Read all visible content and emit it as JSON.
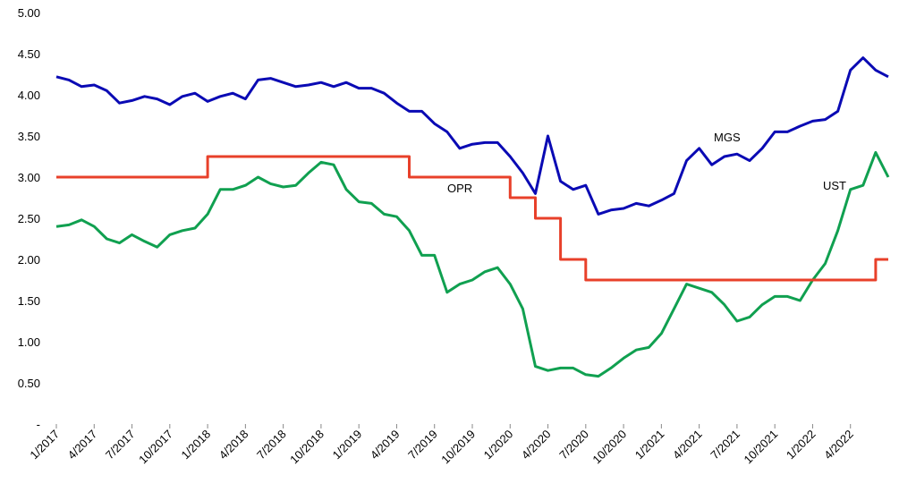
{
  "chart_data": {
    "type": "line",
    "title": "",
    "xlabel": "",
    "ylabel": "",
    "ylim": [
      0,
      5
    ],
    "grid": false,
    "legend": "none",
    "y_ticks": [
      "-",
      "0.50",
      "1.00",
      "1.50",
      "2.00",
      "2.50",
      "3.00",
      "3.50",
      "4.00",
      "4.50",
      "5.00"
    ],
    "x_ticks": [
      "1/2017",
      "4/2017",
      "7/2017",
      "10/2017",
      "1/2018",
      "4/2018",
      "7/2018",
      "10/2018",
      "1/2019",
      "4/2019",
      "7/2019",
      "10/2019",
      "1/2020",
      "4/2020",
      "7/2020",
      "10/2020",
      "1/2021",
      "4/2021",
      "7/2021",
      "10/2021",
      "1/2022",
      "4/2022"
    ],
    "x_start": "2017-01",
    "x_end": "2022-07",
    "series": [
      {
        "name": "MGS",
        "color": "#0a0ab4",
        "points": [
          [
            "2017-01",
            4.22
          ],
          [
            "2017-02",
            4.18
          ],
          [
            "2017-03",
            4.1
          ],
          [
            "2017-04",
            4.12
          ],
          [
            "2017-05",
            4.05
          ],
          [
            "2017-06",
            3.9
          ],
          [
            "2017-07",
            3.93
          ],
          [
            "2017-08",
            3.98
          ],
          [
            "2017-09",
            3.95
          ],
          [
            "2017-10",
            3.88
          ],
          [
            "2017-11",
            3.98
          ],
          [
            "2017-12",
            4.02
          ],
          [
            "2018-01",
            3.92
          ],
          [
            "2018-02",
            3.98
          ],
          [
            "2018-03",
            4.02
          ],
          [
            "2018-04",
            3.95
          ],
          [
            "2018-05",
            4.18
          ],
          [
            "2018-06",
            4.2
          ],
          [
            "2018-07",
            4.15
          ],
          [
            "2018-08",
            4.1
          ],
          [
            "2018-09",
            4.12
          ],
          [
            "2018-10",
            4.15
          ],
          [
            "2018-11",
            4.1
          ],
          [
            "2018-12",
            4.15
          ],
          [
            "2019-01",
            4.08
          ],
          [
            "2019-02",
            4.08
          ],
          [
            "2019-03",
            4.02
          ],
          [
            "2019-04",
            3.9
          ],
          [
            "2019-05",
            3.8
          ],
          [
            "2019-06",
            3.8
          ],
          [
            "2019-07",
            3.65
          ],
          [
            "2019-08",
            3.55
          ],
          [
            "2019-09",
            3.35
          ],
          [
            "2019-10",
            3.4
          ],
          [
            "2019-11",
            3.42
          ],
          [
            "2019-12",
            3.42
          ],
          [
            "2020-01",
            3.25
          ],
          [
            "2020-02",
            3.05
          ],
          [
            "2020-03",
            2.8
          ],
          [
            "2020-04",
            3.5
          ],
          [
            "2020-05",
            2.95
          ],
          [
            "2020-06",
            2.85
          ],
          [
            "2020-07",
            2.9
          ],
          [
            "2020-08",
            2.55
          ],
          [
            "2020-09",
            2.6
          ],
          [
            "2020-10",
            2.62
          ],
          [
            "2020-11",
            2.68
          ],
          [
            "2020-12",
            2.65
          ],
          [
            "2021-01",
            2.72
          ],
          [
            "2021-02",
            2.8
          ],
          [
            "2021-03",
            3.2
          ],
          [
            "2021-04",
            3.35
          ],
          [
            "2021-05",
            3.15
          ],
          [
            "2021-06",
            3.25
          ],
          [
            "2021-07",
            3.28
          ],
          [
            "2021-08",
            3.2
          ],
          [
            "2021-09",
            3.35
          ],
          [
            "2021-10",
            3.55
          ],
          [
            "2021-11",
            3.55
          ],
          [
            "2021-12",
            3.62
          ],
          [
            "2022-01",
            3.68
          ],
          [
            "2022-02",
            3.7
          ],
          [
            "2022-03",
            3.8
          ],
          [
            "2022-04",
            4.3
          ],
          [
            "2022-05",
            4.45
          ],
          [
            "2022-06",
            4.3
          ],
          [
            "2022-07",
            4.22
          ]
        ]
      },
      {
        "name": "UST",
        "color": "#10a050",
        "points": [
          [
            "2017-01",
            2.4
          ],
          [
            "2017-02",
            2.42
          ],
          [
            "2017-03",
            2.48
          ],
          [
            "2017-04",
            2.4
          ],
          [
            "2017-05",
            2.25
          ],
          [
            "2017-06",
            2.2
          ],
          [
            "2017-07",
            2.3
          ],
          [
            "2017-08",
            2.22
          ],
          [
            "2017-09",
            2.15
          ],
          [
            "2017-10",
            2.3
          ],
          [
            "2017-11",
            2.35
          ],
          [
            "2017-12",
            2.38
          ],
          [
            "2018-01",
            2.55
          ],
          [
            "2018-02",
            2.85
          ],
          [
            "2018-03",
            2.85
          ],
          [
            "2018-04",
            2.9
          ],
          [
            "2018-05",
            3.0
          ],
          [
            "2018-06",
            2.92
          ],
          [
            "2018-07",
            2.88
          ],
          [
            "2018-08",
            2.9
          ],
          [
            "2018-09",
            3.05
          ],
          [
            "2018-10",
            3.18
          ],
          [
            "2018-11",
            3.15
          ],
          [
            "2018-12",
            2.85
          ],
          [
            "2019-01",
            2.7
          ],
          [
            "2019-02",
            2.68
          ],
          [
            "2019-03",
            2.55
          ],
          [
            "2019-04",
            2.52
          ],
          [
            "2019-05",
            2.35
          ],
          [
            "2019-06",
            2.05
          ],
          [
            "2019-07",
            2.05
          ],
          [
            "2019-08",
            1.6
          ],
          [
            "2019-09",
            1.7
          ],
          [
            "2019-10",
            1.75
          ],
          [
            "2019-11",
            1.85
          ],
          [
            "2019-12",
            1.9
          ],
          [
            "2020-01",
            1.7
          ],
          [
            "2020-02",
            1.4
          ],
          [
            "2020-03",
            0.7
          ],
          [
            "2020-04",
            0.65
          ],
          [
            "2020-05",
            0.68
          ],
          [
            "2020-06",
            0.68
          ],
          [
            "2020-07",
            0.6
          ],
          [
            "2020-08",
            0.58
          ],
          [
            "2020-09",
            0.68
          ],
          [
            "2020-10",
            0.8
          ],
          [
            "2020-11",
            0.9
          ],
          [
            "2020-12",
            0.93
          ],
          [
            "2021-01",
            1.1
          ],
          [
            "2021-02",
            1.4
          ],
          [
            "2021-03",
            1.7
          ],
          [
            "2021-04",
            1.65
          ],
          [
            "2021-05",
            1.6
          ],
          [
            "2021-06",
            1.45
          ],
          [
            "2021-07",
            1.25
          ],
          [
            "2021-08",
            1.3
          ],
          [
            "2021-09",
            1.45
          ],
          [
            "2021-10",
            1.55
          ],
          [
            "2021-11",
            1.55
          ],
          [
            "2021-12",
            1.5
          ],
          [
            "2022-01",
            1.75
          ],
          [
            "2022-02",
            1.95
          ],
          [
            "2022-03",
            2.35
          ],
          [
            "2022-04",
            2.85
          ],
          [
            "2022-05",
            2.9
          ],
          [
            "2022-06",
            3.3
          ],
          [
            "2022-07",
            3.0
          ]
        ]
      },
      {
        "name": "OPR",
        "color": "#e8402a",
        "step": true,
        "points": [
          [
            "2017-01",
            3.0
          ],
          [
            "2018-01",
            3.0
          ],
          [
            "2018-01",
            3.25
          ],
          [
            "2019-05",
            3.25
          ],
          [
            "2019-05",
            3.0
          ],
          [
            "2020-01",
            3.0
          ],
          [
            "2020-01",
            2.75
          ],
          [
            "2020-03",
            2.75
          ],
          [
            "2020-03",
            2.5
          ],
          [
            "2020-05",
            2.5
          ],
          [
            "2020-05",
            2.0
          ],
          [
            "2020-07",
            2.0
          ],
          [
            "2020-07",
            1.75
          ],
          [
            "2022-06",
            1.75
          ],
          [
            "2022-06",
            2.0
          ],
          [
            "2022-07",
            2.0
          ]
        ]
      }
    ]
  }
}
